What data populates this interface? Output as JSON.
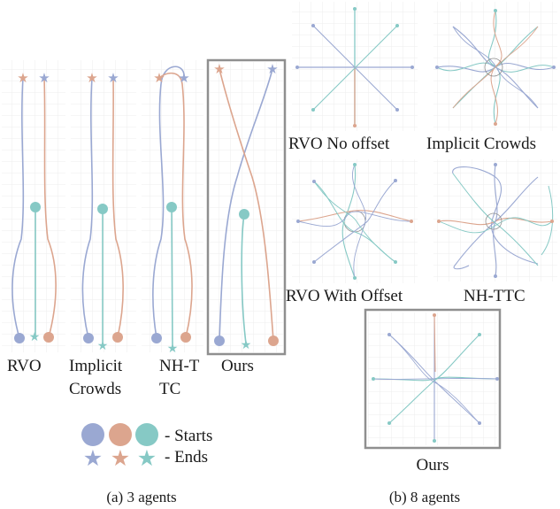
{
  "panel_a": {
    "methods": [
      "RVO",
      "Implicit",
      "Crowds",
      "NH-T",
      "TC",
      "Ours"
    ],
    "caption": "(a) 3 agents"
  },
  "legend": {
    "starts_label": "- Starts",
    "ends_label": "- Ends"
  },
  "panel_b": {
    "labels": [
      "RVO No offset",
      "Implicit Crowds",
      "RVO With Offset",
      "NH-TTC",
      "Ours"
    ],
    "caption": "(b) 8 agents"
  },
  "colors": {
    "blue": "#9aa8d2",
    "orange": "#dca58e",
    "teal": "#86c9c5",
    "frame": "#8f8f8f",
    "grid": "#ececec"
  }
}
